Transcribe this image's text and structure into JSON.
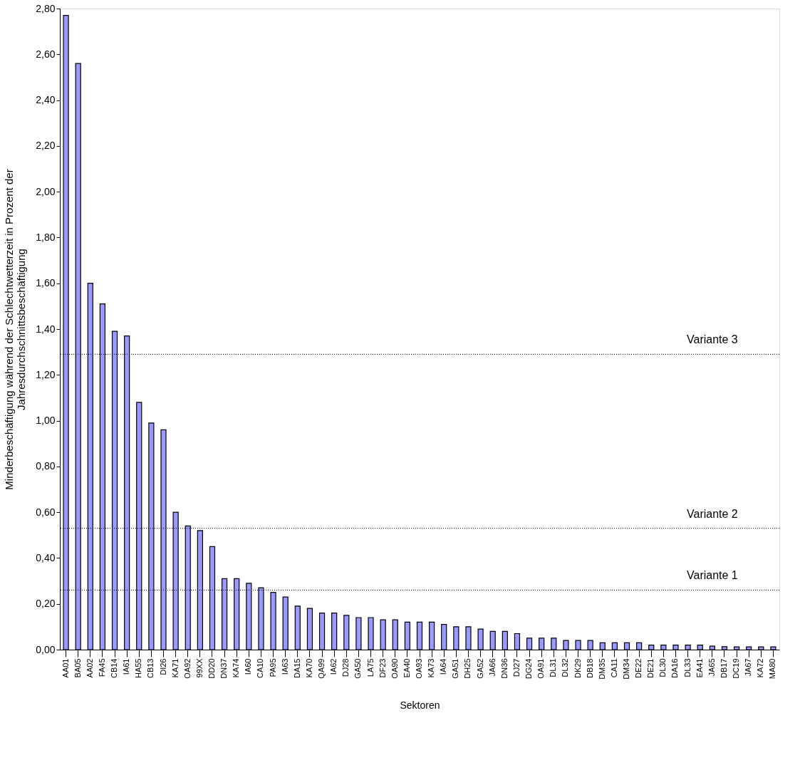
{
  "chart_data": {
    "type": "bar",
    "xlabel": "Sektoren",
    "ylabel": "Minderbeschäftigung während der Schlechtwetterzeit in Prozent der\nJahresdurchschnittsbeschäftigung",
    "categories": [
      "AA01",
      "BA05",
      "AA02",
      "FA45",
      "CB14",
      "IA61",
      "HA55",
      "CB13",
      "DI26",
      "KA71",
      "OA92",
      "99XX",
      "DD20",
      "DN37",
      "KA74",
      "IA60",
      "CA10",
      "PA95",
      "IA63",
      "DA15",
      "KA70",
      "QA99",
      "IA62",
      "DJ28",
      "GA50",
      "LA75",
      "DF23",
      "OA90",
      "EA40",
      "OA93",
      "KA73",
      "IA64",
      "GA51",
      "DH25",
      "GA52",
      "JA66",
      "DN36",
      "DJ27",
      "DG24",
      "OA91",
      "DL31",
      "DL32",
      "DK29",
      "DB18",
      "DM35",
      "CA11",
      "DM34",
      "DE22",
      "DE21",
      "DL30",
      "DA16",
      "DL33",
      "EA41",
      "JA65",
      "DB17",
      "DC19",
      "JA67",
      "KA72",
      "MA80"
    ],
    "values": [
      2.77,
      2.56,
      1.6,
      1.51,
      1.39,
      1.37,
      1.08,
      0.99,
      0.96,
      0.6,
      0.54,
      0.52,
      0.45,
      0.31,
      0.31,
      0.29,
      0.27,
      0.25,
      0.23,
      0.19,
      0.18,
      0.16,
      0.16,
      0.15,
      0.14,
      0.14,
      0.13,
      0.13,
      0.12,
      0.12,
      0.12,
      0.11,
      0.1,
      0.1,
      0.09,
      0.08,
      0.08,
      0.07,
      0.05,
      0.05,
      0.05,
      0.04,
      0.04,
      0.04,
      0.03,
      0.03,
      0.03,
      0.03,
      0.02,
      0.02,
      0.02,
      0.02,
      0.02,
      0.015,
      0.013,
      0.012,
      0.012,
      0.012,
      0.012
    ],
    "color": "#9999ff",
    "ylim": [
      0,
      2.8
    ],
    "yticks": [
      {
        "value": 0,
        "label": "0,00"
      },
      {
        "value": 0.2,
        "label": "0,20"
      },
      {
        "value": 0.4,
        "label": "0,40"
      },
      {
        "value": 0.6,
        "label": "0,60"
      },
      {
        "value": 0.8,
        "label": "0,80"
      },
      {
        "value": 1.0,
        "label": "1,00"
      },
      {
        "value": 1.2,
        "label": "1,20"
      },
      {
        "value": 1.4,
        "label": "1,40"
      },
      {
        "value": 1.6,
        "label": "1,60"
      },
      {
        "value": 1.8,
        "label": "1,80"
      },
      {
        "value": 2.0,
        "label": "2,00"
      },
      {
        "value": 2.2,
        "label": "2,20"
      },
      {
        "value": 2.4,
        "label": "2,40"
      },
      {
        "value": 2.6,
        "label": "2,60"
      },
      {
        "value": 2.8,
        "label": "2,80"
      }
    ],
    "ref_lines": [
      {
        "axis": "y",
        "value": 1.29,
        "label": "Variante 3",
        "line_style": "dotted",
        "color": "#000000"
      },
      {
        "axis": "y",
        "value": 0.53,
        "label": "Variante 2",
        "line_style": "dotted",
        "color": "#000000"
      },
      {
        "axis": "y",
        "value": 0.26,
        "label": "Variante 1",
        "line_style": "dotted",
        "color": "#000000"
      }
    ],
    "grid": false
  }
}
